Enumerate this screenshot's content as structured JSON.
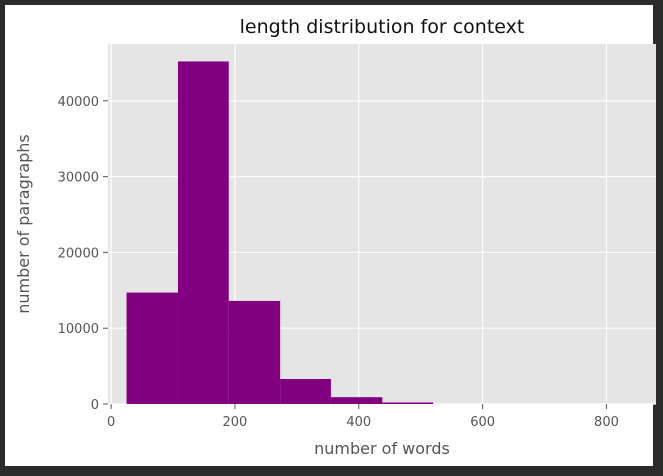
{
  "chart_data": {
    "type": "bar",
    "title": "length distribution for context",
    "xlabel": "number of words",
    "ylabel": "number of paragraphs",
    "bin_edges": [
      25,
      108,
      190,
      273,
      355,
      438,
      520
    ],
    "values": [
      14700,
      45200,
      13600,
      3300,
      900,
      200
    ],
    "xlim": [
      -5,
      880
    ],
    "ylim": [
      0,
      47500
    ],
    "xticks": [
      0,
      200,
      400,
      600,
      800
    ],
    "yticks": [
      0,
      10000,
      20000,
      30000,
      40000
    ],
    "grid": true,
    "style": "ggplot",
    "colors": {
      "bar": "#800080",
      "plot_background": "#e5e5e5",
      "grid": "#ffffff",
      "frame": "#2b2b2b"
    }
  }
}
